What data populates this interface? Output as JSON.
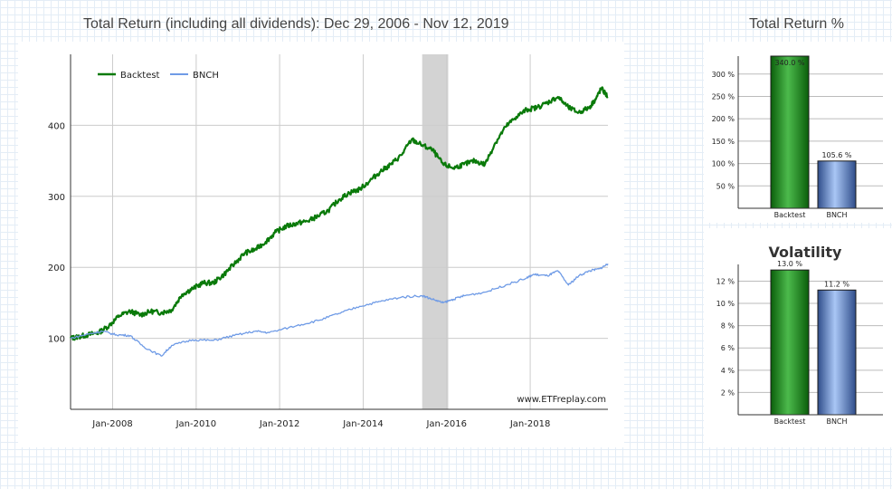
{
  "colors": {
    "backtest": "#0a7a0a",
    "bench": "#6f9be6",
    "shade": "#d3d3d3",
    "grid": "#cccccc"
  },
  "main_title": "Total Return (including all dividends): Dec 29, 2006 - Nov 12, 2019",
  "return_title": "Total Return %",
  "watermark": "www.ETFreplay.com",
  "chart_data": [
    {
      "type": "line",
      "title": "Total Return (including all dividends): Dec 29, 2006 - Nov 12, 2019",
      "xlim": [
        "2006-12-29",
        "2019-11-12"
      ],
      "ylim": [
        0,
        500
      ],
      "y_ticks": [
        100,
        200,
        300,
        400
      ],
      "x_ticks": [
        "Jan-2008",
        "Jan-2010",
        "Jan-2012",
        "Jan-2014",
        "Jan-2016",
        "Jan-2018"
      ],
      "x_tick_dates": [
        "2008-01-01",
        "2010-01-01",
        "2012-01-01",
        "2014-01-01",
        "2016-01-01",
        "2018-01-01"
      ],
      "grid": "vertical-and-horizontal",
      "legend_position": "top-left",
      "shaded_region": [
        "2015-06-01",
        "2016-01-15"
      ],
      "watermark": "www.ETFreplay.com",
      "series": [
        {
          "name": "Backtest",
          "points": [
            [
              "2006-12-29",
              100
            ],
            [
              "2007-03-01",
              102
            ],
            [
              "2007-06-01",
              105
            ],
            [
              "2007-09-01",
              108
            ],
            [
              "2007-12-01",
              118
            ],
            [
              "2008-03-01",
              132
            ],
            [
              "2008-06-01",
              138
            ],
            [
              "2008-09-01",
              133
            ],
            [
              "2008-12-01",
              138
            ],
            [
              "2009-03-01",
              136
            ],
            [
              "2009-06-01",
              140
            ],
            [
              "2009-09-01",
              162
            ],
            [
              "2009-12-01",
              170
            ],
            [
              "2010-03-01",
              178
            ],
            [
              "2010-06-01",
              178
            ],
            [
              "2010-09-01",
              190
            ],
            [
              "2010-12-01",
              205
            ],
            [
              "2011-03-01",
              220
            ],
            [
              "2011-06-01",
              225
            ],
            [
              "2011-09-01",
              236
            ],
            [
              "2011-12-01",
              250
            ],
            [
              "2012-03-01",
              258
            ],
            [
              "2012-06-01",
              262
            ],
            [
              "2012-09-01",
              265
            ],
            [
              "2012-12-01",
              272
            ],
            [
              "2013-03-01",
              280
            ],
            [
              "2013-06-01",
              295
            ],
            [
              "2013-09-01",
              305
            ],
            [
              "2013-12-01",
              310
            ],
            [
              "2014-03-01",
              322
            ],
            [
              "2014-06-01",
              335
            ],
            [
              "2014-09-01",
              345
            ],
            [
              "2014-12-01",
              358
            ],
            [
              "2015-03-01",
              380
            ],
            [
              "2015-06-01",
              372
            ],
            [
              "2015-09-01",
              365
            ],
            [
              "2015-12-01",
              345
            ],
            [
              "2016-03-01",
              340
            ],
            [
              "2016-06-01",
              345
            ],
            [
              "2016-09-01",
              350
            ],
            [
              "2016-12-01",
              345
            ],
            [
              "2017-03-01",
              375
            ],
            [
              "2017-06-01",
              398
            ],
            [
              "2017-09-01",
              412
            ],
            [
              "2017-12-01",
              422
            ],
            [
              "2018-03-01",
              425
            ],
            [
              "2018-06-01",
              432
            ],
            [
              "2018-09-01",
              440
            ],
            [
              "2018-12-01",
              425
            ],
            [
              "2019-03-01",
              418
            ],
            [
              "2019-06-01",
              425
            ],
            [
              "2019-08-01",
              438
            ],
            [
              "2019-09-15",
              452
            ],
            [
              "2019-11-12",
              440
            ]
          ]
        },
        {
          "name": "BNCH",
          "points": [
            [
              "2006-12-29",
              100
            ],
            [
              "2007-06-01",
              106
            ],
            [
              "2007-10-01",
              110
            ],
            [
              "2008-02-01",
              105
            ],
            [
              "2008-06-01",
              104
            ],
            [
              "2008-10-01",
              88
            ],
            [
              "2009-03-01",
              75
            ],
            [
              "2009-06-01",
              90
            ],
            [
              "2009-12-01",
              98
            ],
            [
              "2010-06-01",
              97
            ],
            [
              "2010-12-01",
              104
            ],
            [
              "2011-06-01",
              110
            ],
            [
              "2011-10-01",
              108
            ],
            [
              "2012-06-01",
              118
            ],
            [
              "2012-12-01",
              125
            ],
            [
              "2013-06-01",
              135
            ],
            [
              "2013-12-01",
              145
            ],
            [
              "2014-06-01",
              152
            ],
            [
              "2014-12-01",
              158
            ],
            [
              "2015-06-01",
              160
            ],
            [
              "2015-09-01",
              155
            ],
            [
              "2015-12-01",
              150
            ],
            [
              "2016-03-01",
              155
            ],
            [
              "2016-06-01",
              160
            ],
            [
              "2016-12-01",
              165
            ],
            [
              "2017-06-01",
              175
            ],
            [
              "2017-12-01",
              185
            ],
            [
              "2018-02-01",
              190
            ],
            [
              "2018-06-01",
              188
            ],
            [
              "2018-09-01",
              195
            ],
            [
              "2018-12-01",
              175
            ],
            [
              "2019-03-01",
              188
            ],
            [
              "2019-06-01",
              195
            ],
            [
              "2019-09-01",
              198
            ],
            [
              "2019-11-12",
              205
            ]
          ]
        }
      ]
    },
    {
      "type": "bar",
      "title": "Total Return %",
      "categories": [
        "Backtest",
        "BNCH"
      ],
      "values": [
        340.0,
        105.6
      ],
      "data_labels": [
        "340.0 %",
        "105.6 %"
      ],
      "ylim": [
        0,
        340
      ],
      "y_ticks": [
        50,
        100,
        150,
        200,
        250,
        300
      ],
      "y_tick_labels": [
        "50 %",
        "100 %",
        "150 %",
        "200 %",
        "250 %",
        "300 %"
      ]
    },
    {
      "type": "bar",
      "title": "Volatility",
      "categories": [
        "Backtest",
        "BNCH"
      ],
      "values": [
        13.0,
        11.2
      ],
      "data_labels": [
        "13.0 %",
        "11.2 %"
      ],
      "ylim": [
        0,
        13.5
      ],
      "y_ticks": [
        2,
        4,
        6,
        8,
        10,
        12
      ],
      "y_tick_labels": [
        "2 %",
        "4 %",
        "6 %",
        "8 %",
        "10 %",
        "12 %"
      ]
    }
  ]
}
